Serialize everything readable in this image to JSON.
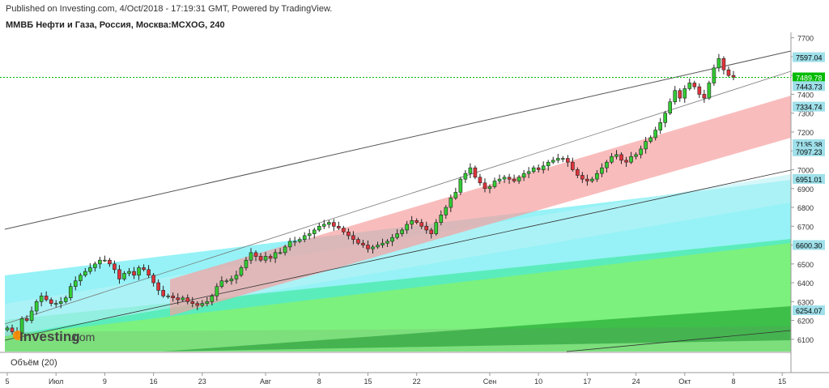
{
  "header": {
    "published": "Published on Investing.com, 4/Oct/2018 - 17:19:31 GMT, Powered by TradingView.",
    "symbol": "ММВБ Нефти и Газа, Россия, Москва:MCXOG, 240"
  },
  "watermark": {
    "brand": "Investing",
    "suffix": ".com"
  },
  "volume_label": "Объём (20)",
  "colors": {
    "up": "#33cc33",
    "down": "#e0333a",
    "price_line": "#00bb00",
    "axis_box": "#9fe0ea"
  },
  "chart_data": {
    "type": "candlestick",
    "title": "ММВБ Нефти и Газа, Россия, Москва:MCXOG, 240",
    "ylim": [
      6035,
      7750
    ],
    "y_ticks": [
      6100,
      6200,
      6300,
      6400,
      6500,
      6600,
      6700,
      6800,
      6900,
      7000,
      7100,
      7200,
      7300,
      7400,
      7500,
      7600,
      7700
    ],
    "x_ticks": [
      {
        "label": "5",
        "i": 0
      },
      {
        "label": "Июл",
        "i": 10
      },
      {
        "label": "9",
        "i": 20
      },
      {
        "label": "16",
        "i": 30
      },
      {
        "label": "23",
        "i": 40
      },
      {
        "label": "Авг",
        "i": 53
      },
      {
        "label": "8",
        "i": 64
      },
      {
        "label": "15",
        "i": 74
      },
      {
        "label": "22",
        "i": 84
      },
      {
        "label": "Сен",
        "i": 99
      },
      {
        "label": "10",
        "i": 109
      },
      {
        "label": "17",
        "i": 119
      },
      {
        "label": "24",
        "i": 129
      },
      {
        "label": "Окт",
        "i": 139
      },
      {
        "label": "8",
        "i": 149
      },
      {
        "label": "15",
        "i": 159
      }
    ],
    "price_labels": [
      {
        "value": "7597.04",
        "kind": "box"
      },
      {
        "value": "7489.78",
        "kind": "last"
      },
      {
        "value": "7443.73",
        "kind": "box"
      },
      {
        "value": "7334.74",
        "kind": "box"
      },
      {
        "value": "7135.38",
        "kind": "box"
      },
      {
        "value": "7097.23",
        "kind": "box"
      },
      {
        "value": "6951.01",
        "kind": "box"
      },
      {
        "value": "6600.30",
        "kind": "box"
      },
      {
        "value": "6254.07",
        "kind": "box"
      }
    ],
    "last_price": 7489.78,
    "candles_close": [
      6160,
      6140,
      6130,
      6210,
      6200,
      6250,
      6300,
      6330,
      6310,
      6290,
      6290,
      6300,
      6320,
      6380,
      6410,
      6440,
      6460,
      6480,
      6500,
      6520,
      6520,
      6500,
      6470,
      6420,
      6450,
      6460,
      6440,
      6480,
      6470,
      6440,
      6400,
      6360,
      6330,
      6330,
      6320,
      6310,
      6320,
      6300,
      6290,
      6280,
      6290,
      6300,
      6330,
      6380,
      6410,
      6410,
      6420,
      6440,
      6480,
      6520,
      6560,
      6540,
      6520,
      6540,
      6530,
      6560,
      6560,
      6590,
      6620,
      6620,
      6630,
      6650,
      6660,
      6680,
      6700,
      6710,
      6720,
      6700,
      6690,
      6670,
      6650,
      6630,
      6610,
      6600,
      6580,
      6590,
      6600,
      6610,
      6620,
      6640,
      6660,
      6680,
      6710,
      6730,
      6720,
      6700,
      6680,
      6660,
      6720,
      6760,
      6800,
      6850,
      6880,
      6950,
      6980,
      7010,
      6960,
      6930,
      6900,
      6910,
      6940,
      6950,
      6960,
      6950,
      6940,
      6960,
      6980,
      6990,
      7010,
      7000,
      7020,
      7040,
      7050,
      7060,
      7060,
      7040,
      7000,
      6970,
      6950,
      6940,
      6950,
      6980,
      7010,
      7040,
      7070,
      7080,
      7050,
      7040,
      7070,
      7080,
      7110,
      7150,
      7170,
      7210,
      7250,
      7300,
      7360,
      7420,
      7380,
      7430,
      7460,
      7440,
      7400,
      7380,
      7460,
      7540,
      7590,
      7530,
      7500,
      7490
    ]
  }
}
